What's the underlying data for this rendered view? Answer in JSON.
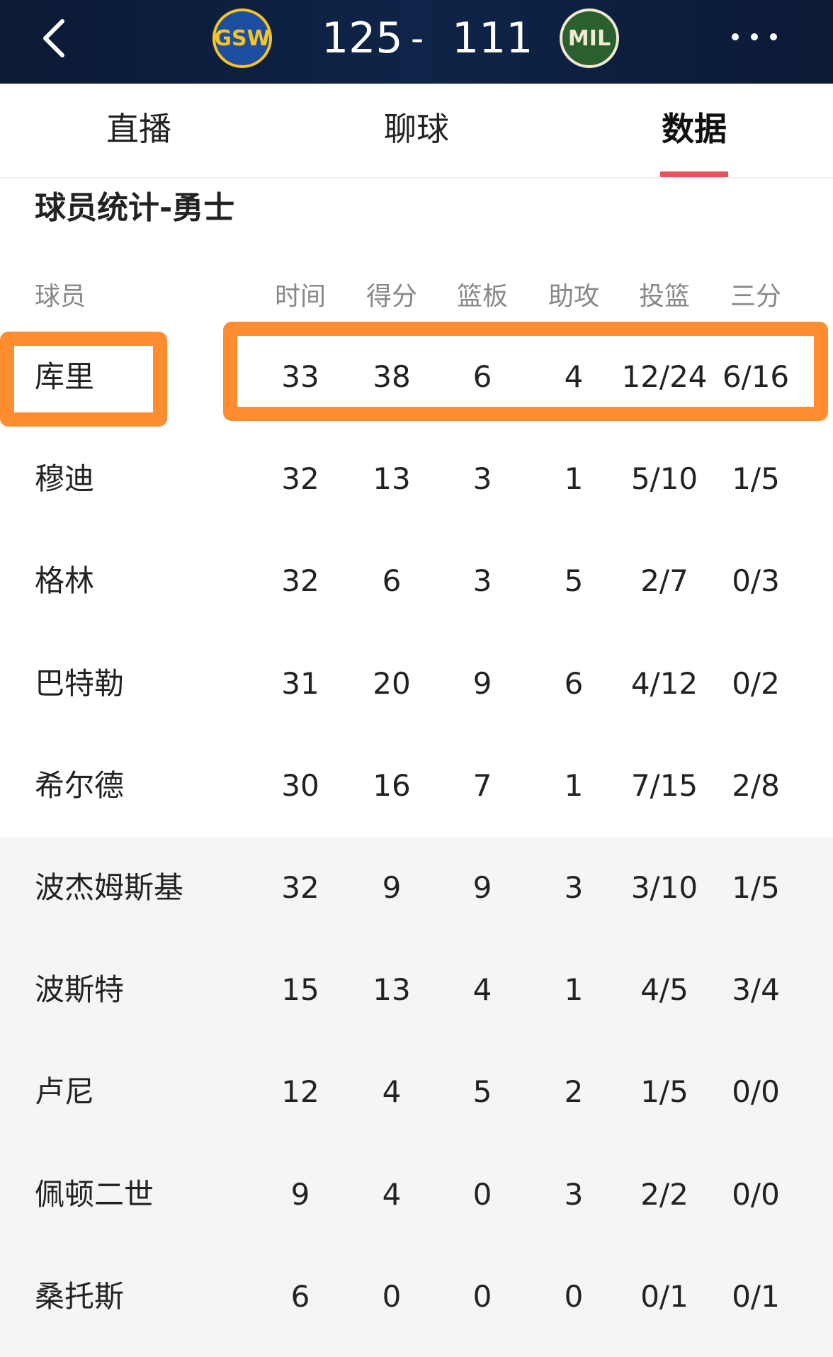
{
  "header": {
    "home_team": "GSW",
    "home_score": "125",
    "separator": "-",
    "away_score": "111",
    "away_team": "MIL"
  },
  "tabs": [
    "直播",
    "聊球",
    "数据"
  ],
  "section_title": "球员统计-勇士",
  "table": {
    "columns": [
      "球员",
      "时间",
      "得分",
      "篮板",
      "助攻",
      "投篮",
      "三分"
    ],
    "rows": [
      [
        "库里",
        "33",
        "38",
        "6",
        "4",
        "12/24",
        "6/16"
      ],
      [
        "穆迪",
        "32",
        "13",
        "3",
        "1",
        "5/10",
        "1/5"
      ],
      [
        "格林",
        "32",
        "6",
        "3",
        "5",
        "2/7",
        "0/3"
      ],
      [
        "巴特勒",
        "31",
        "20",
        "9",
        "6",
        "4/12",
        "0/2"
      ],
      [
        "希尔德",
        "30",
        "16",
        "7",
        "1",
        "7/15",
        "2/8"
      ],
      [
        "波杰姆斯基",
        "32",
        "9",
        "9",
        "3",
        "3/10",
        "1/5"
      ],
      [
        "波斯特",
        "15",
        "13",
        "4",
        "1",
        "4/5",
        "3/4"
      ],
      [
        "卢尼",
        "12",
        "4",
        "5",
        "2",
        "1/5",
        "0/0"
      ],
      [
        "佩顿二世",
        "9",
        "4",
        "0",
        "3",
        "2/2",
        "0/0"
      ],
      [
        "桑托斯",
        "6",
        "0",
        "0",
        "0",
        "0/1",
        "0/1"
      ]
    ]
  }
}
